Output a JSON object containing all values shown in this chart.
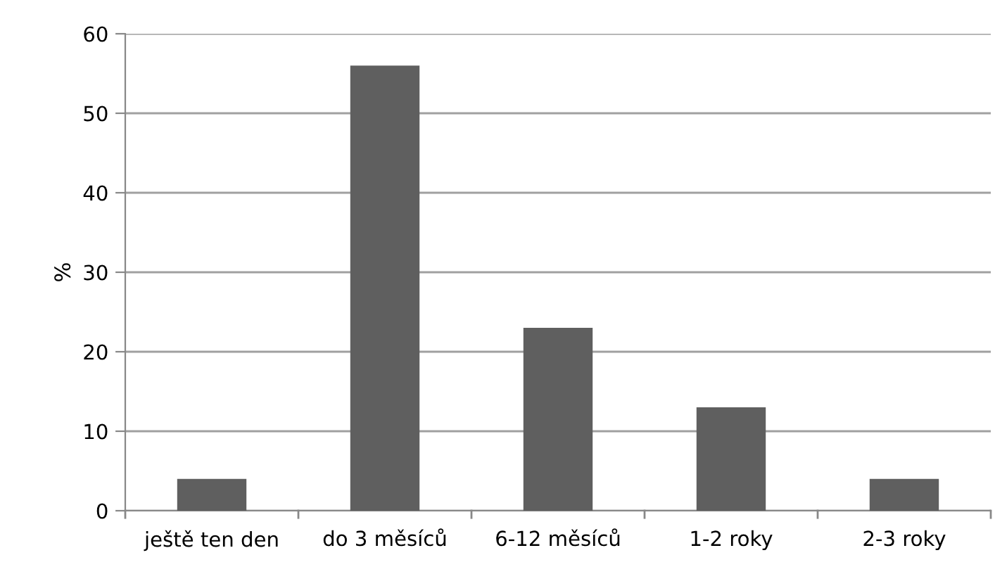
{
  "chart_data": {
    "type": "bar",
    "ylabel": "%",
    "categories": [
      "ještě ten den",
      "do 3 měsíců",
      "6-12 měsíců",
      "1-2 roky",
      "2-3 roky"
    ],
    "values": [
      4,
      56,
      23,
      13,
      4
    ],
    "color": "#5f5f5f",
    "ylim": [
      0,
      60
    ],
    "yticks": [
      0,
      10,
      20,
      30,
      40,
      50,
      60
    ],
    "grid": "y"
  }
}
